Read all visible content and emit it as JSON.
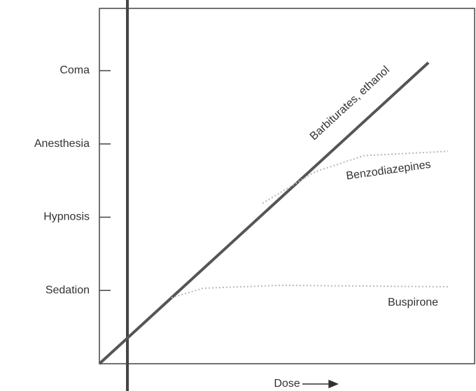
{
  "chart_data": {
    "type": "line",
    "y_categories_note_free": null,
    "xlabel": "Dose",
    "xlim": [
      0,
      10
    ],
    "ylim": [
      0,
      4.85
    ],
    "yticks": [
      {
        "value": 1,
        "label": "Sedation"
      },
      {
        "value": 2,
        "label": "Hypnosis"
      },
      {
        "value": 3,
        "label": "Anesthesia"
      },
      {
        "value": 4,
        "label": "Coma"
      }
    ],
    "series": [
      {
        "name": "Barbiturates, ethanol",
        "color": "#555555",
        "dashed": false,
        "x": [
          0,
          8.77
        ],
        "values": [
          0,
          4.11
        ]
      },
      {
        "name": "Benzodiazepines",
        "color": "#b8b8b8",
        "dashed": true,
        "x": [
          4.35,
          5.75,
          7.05,
          9.29
        ],
        "values": [
          2.19,
          2.62,
          2.84,
          2.9
        ]
      },
      {
        "name": "Buspirone",
        "color": "#b8b8b8",
        "dashed": true,
        "x": [
          1.92,
          2.76,
          4.81,
          9.29
        ],
        "values": [
          0.9,
          1.03,
          1.07,
          1.05
        ]
      }
    ]
  }
}
